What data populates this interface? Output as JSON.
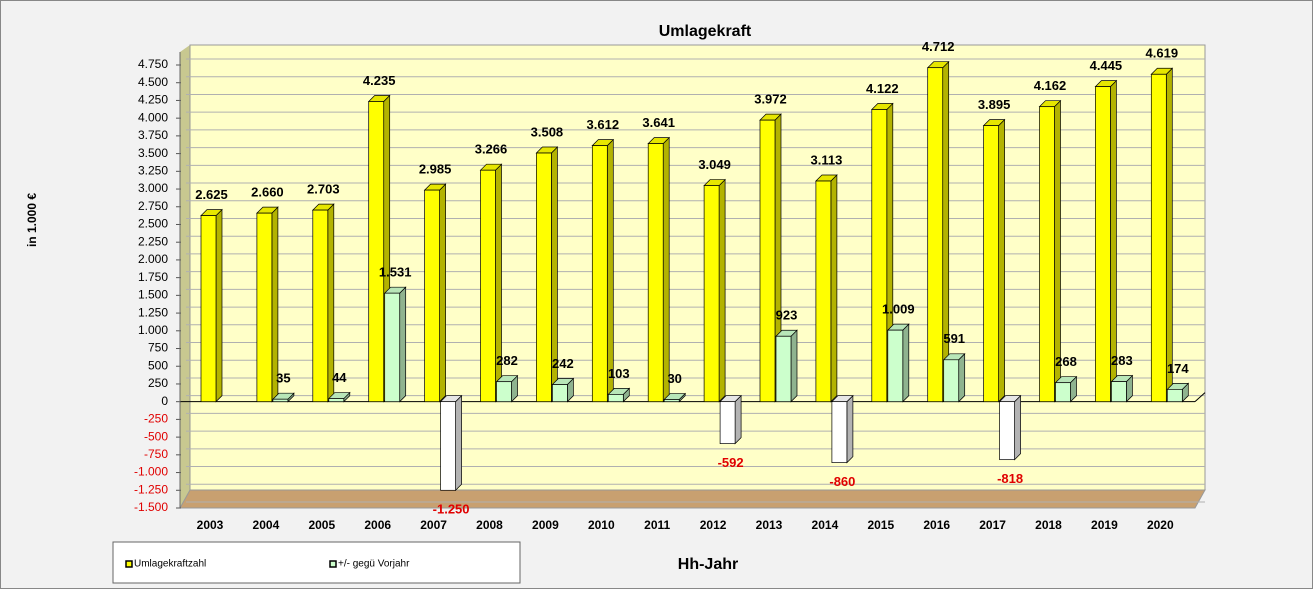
{
  "chart_data": {
    "type": "bar3d",
    "title": "Umlagekraft",
    "y_label": "in 1.000 €",
    "x_label": "Hh-Jahr",
    "categories": [
      "2003",
      "2004",
      "2005",
      "2006",
      "2007",
      "2008",
      "2009",
      "2010",
      "2011",
      "2012",
      "2013",
      "2014",
      "2015",
      "2016",
      "2017",
      "2018",
      "2019",
      "2020"
    ],
    "series": [
      {
        "name": "Umlagekraftzahl",
        "color": "#ffff00",
        "values": [
          2625,
          2660,
          2703,
          4235,
          2985,
          3266,
          3508,
          3612,
          3641,
          3049,
          3972,
          3113,
          4122,
          4712,
          3895,
          4162,
          4445,
          4619
        ],
        "value_labels": [
          "2.625",
          "2.660",
          "2.703",
          "4.235",
          "2.985",
          "3.266",
          "3.508",
          "3.612",
          "3.641",
          "3.049",
          "3.972",
          "3.113",
          "4.122",
          "4.712",
          "3.895",
          "4.162",
          "4.445",
          "4.619"
        ]
      },
      {
        "name": "+/- gegü Vorjahr",
        "color": "#ccffcc",
        "negative_color": "#ffffff",
        "values": [
          null,
          35,
          44,
          1531,
          -1250,
          282,
          242,
          103,
          30,
          -592,
          923,
          -860,
          1009,
          591,
          -818,
          268,
          283,
          174
        ],
        "value_labels": [
          null,
          "35",
          "44",
          "1.531",
          "-1.250",
          "282",
          "242",
          "103",
          "30",
          "-592",
          "923",
          "-860",
          "1.009",
          "591",
          "-818",
          "268",
          "283",
          "174"
        ]
      }
    ],
    "ylim": [
      -1500,
      4750
    ],
    "yticks": [
      {
        "value": -1500,
        "label": "-1.500"
      },
      {
        "value": -1250,
        "label": "-1.250"
      },
      {
        "value": -1000,
        "label": "-1.000"
      },
      -750,
      -500,
      -250,
      0,
      250,
      500,
      750,
      {
        "value": 1000,
        "label": "1.000"
      },
      {
        "value": 1250,
        "label": "1.250"
      },
      {
        "value": 1500,
        "label": "1.500"
      },
      {
        "value": 1750,
        "label": "1.750"
      },
      {
        "value": 2000,
        "label": "2.000"
      },
      {
        "value": 2250,
        "label": "2.250"
      },
      {
        "value": 2500,
        "label": "2.500"
      },
      {
        "value": 2750,
        "label": "2.750"
      },
      {
        "value": 3000,
        "label": "3.000"
      },
      {
        "value": 3250,
        "label": "3.250"
      },
      {
        "value": 3500,
        "label": "3.500"
      },
      {
        "value": 3750,
        "label": "3.750"
      },
      {
        "value": 4000,
        "label": "4.000"
      },
      {
        "value": 4250,
        "label": "4.250"
      },
      {
        "value": 4500,
        "label": "4.500"
      },
      {
        "value": 4750,
        "label": "4.750"
      }
    ],
    "grid": true
  }
}
